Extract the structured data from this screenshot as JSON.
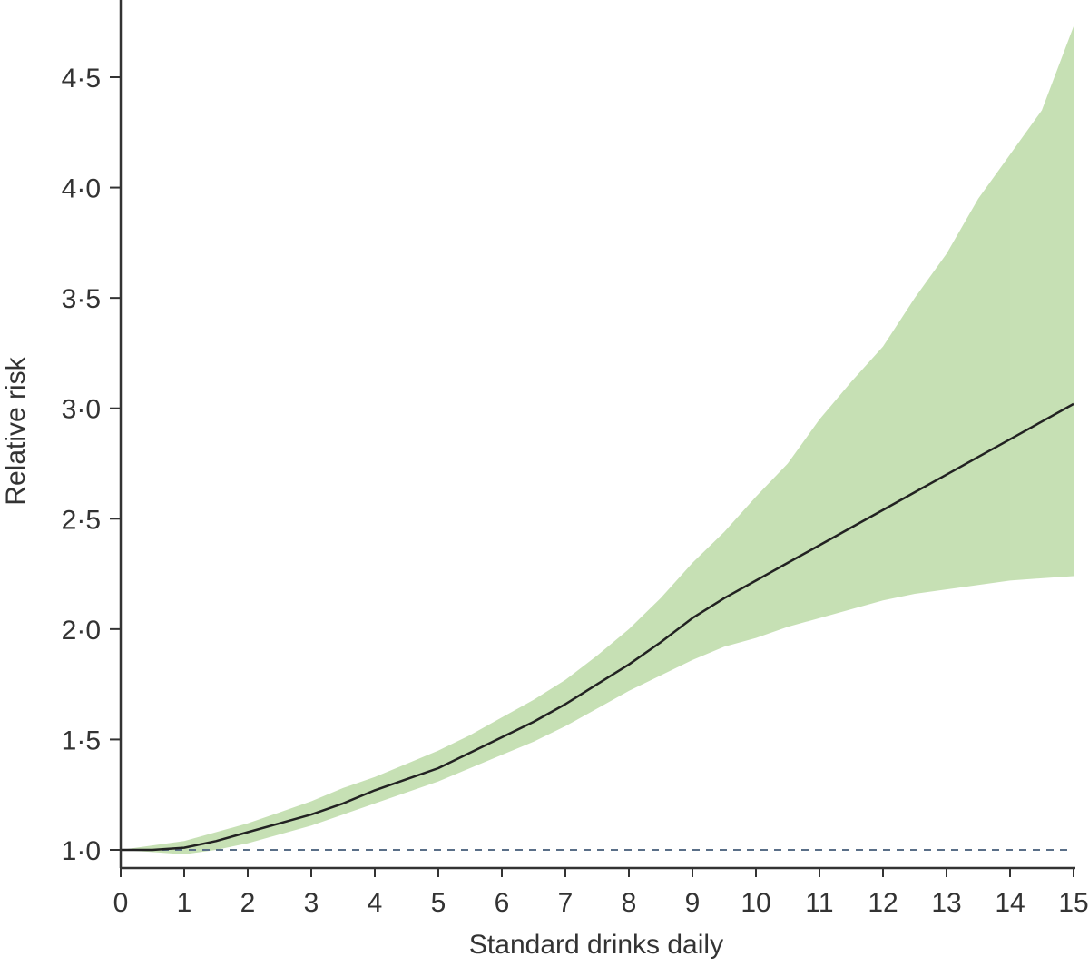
{
  "chart_data": {
    "type": "line",
    "title": "",
    "xlabel": "Standard drinks daily",
    "ylabel": "Relative risk",
    "xlim": [
      0,
      15
    ],
    "ylim": [
      1.0,
      4.75
    ],
    "grid": false,
    "x_ticks": [
      "0",
      "1",
      "2",
      "3",
      "4",
      "5",
      "6",
      "7",
      "8",
      "9",
      "10",
      "11",
      "12",
      "13",
      "14",
      "15"
    ],
    "x_tick_values": [
      0,
      1,
      2,
      3,
      4,
      5,
      6,
      7,
      8,
      9,
      10,
      11,
      12,
      13,
      14,
      15
    ],
    "y_ticks": [
      "1·0",
      "1·5",
      "2·0",
      "2·5",
      "3·0",
      "3·5",
      "4·0",
      "4·5"
    ],
    "y_tick_values": [
      1.0,
      1.5,
      2.0,
      2.5,
      3.0,
      3.5,
      4.0,
      4.5
    ],
    "x": [
      0,
      0.5,
      1,
      1.5,
      2,
      2.5,
      3,
      3.5,
      4,
      4.5,
      5,
      5.5,
      6,
      6.5,
      7,
      7.5,
      8,
      8.5,
      9,
      9.5,
      10,
      10.5,
      11,
      11.5,
      12,
      12.5,
      13,
      13.5,
      14,
      14.5,
      15
    ],
    "series": [
      {
        "values": [
          1.0,
          1.0,
          1.01,
          1.04,
          1.08,
          1.12,
          1.16,
          1.21,
          1.27,
          1.32,
          1.37,
          1.44,
          1.51,
          1.58,
          1.66,
          1.75,
          1.84,
          1.94,
          2.05,
          2.14,
          2.22,
          2.3,
          2.38,
          2.46,
          2.54,
          2.62,
          2.7,
          2.78,
          2.86,
          2.94,
          3.02
        ],
        "color": "#222222"
      }
    ],
    "confidence_band": {
      "upper": [
        1.0,
        1.02,
        1.04,
        1.08,
        1.12,
        1.17,
        1.22,
        1.28,
        1.33,
        1.39,
        1.45,
        1.52,
        1.6,
        1.68,
        1.77,
        1.88,
        2.0,
        2.14,
        2.3,
        2.44,
        2.6,
        2.75,
        2.95,
        3.12,
        3.28,
        3.5,
        3.7,
        3.95,
        4.15,
        4.35,
        4.73
      ],
      "lower": [
        1.0,
        0.99,
        0.98,
        1.0,
        1.03,
        1.07,
        1.11,
        1.16,
        1.21,
        1.26,
        1.31,
        1.37,
        1.43,
        1.49,
        1.56,
        1.64,
        1.72,
        1.79,
        1.86,
        1.92,
        1.96,
        2.01,
        2.05,
        2.09,
        2.13,
        2.16,
        2.18,
        2.2,
        2.22,
        2.23,
        2.24
      ],
      "color": "#c6e0b4"
    },
    "reference_line": {
      "y": 1.0,
      "style": "dashed",
      "color": "#5a6f88"
    }
  }
}
